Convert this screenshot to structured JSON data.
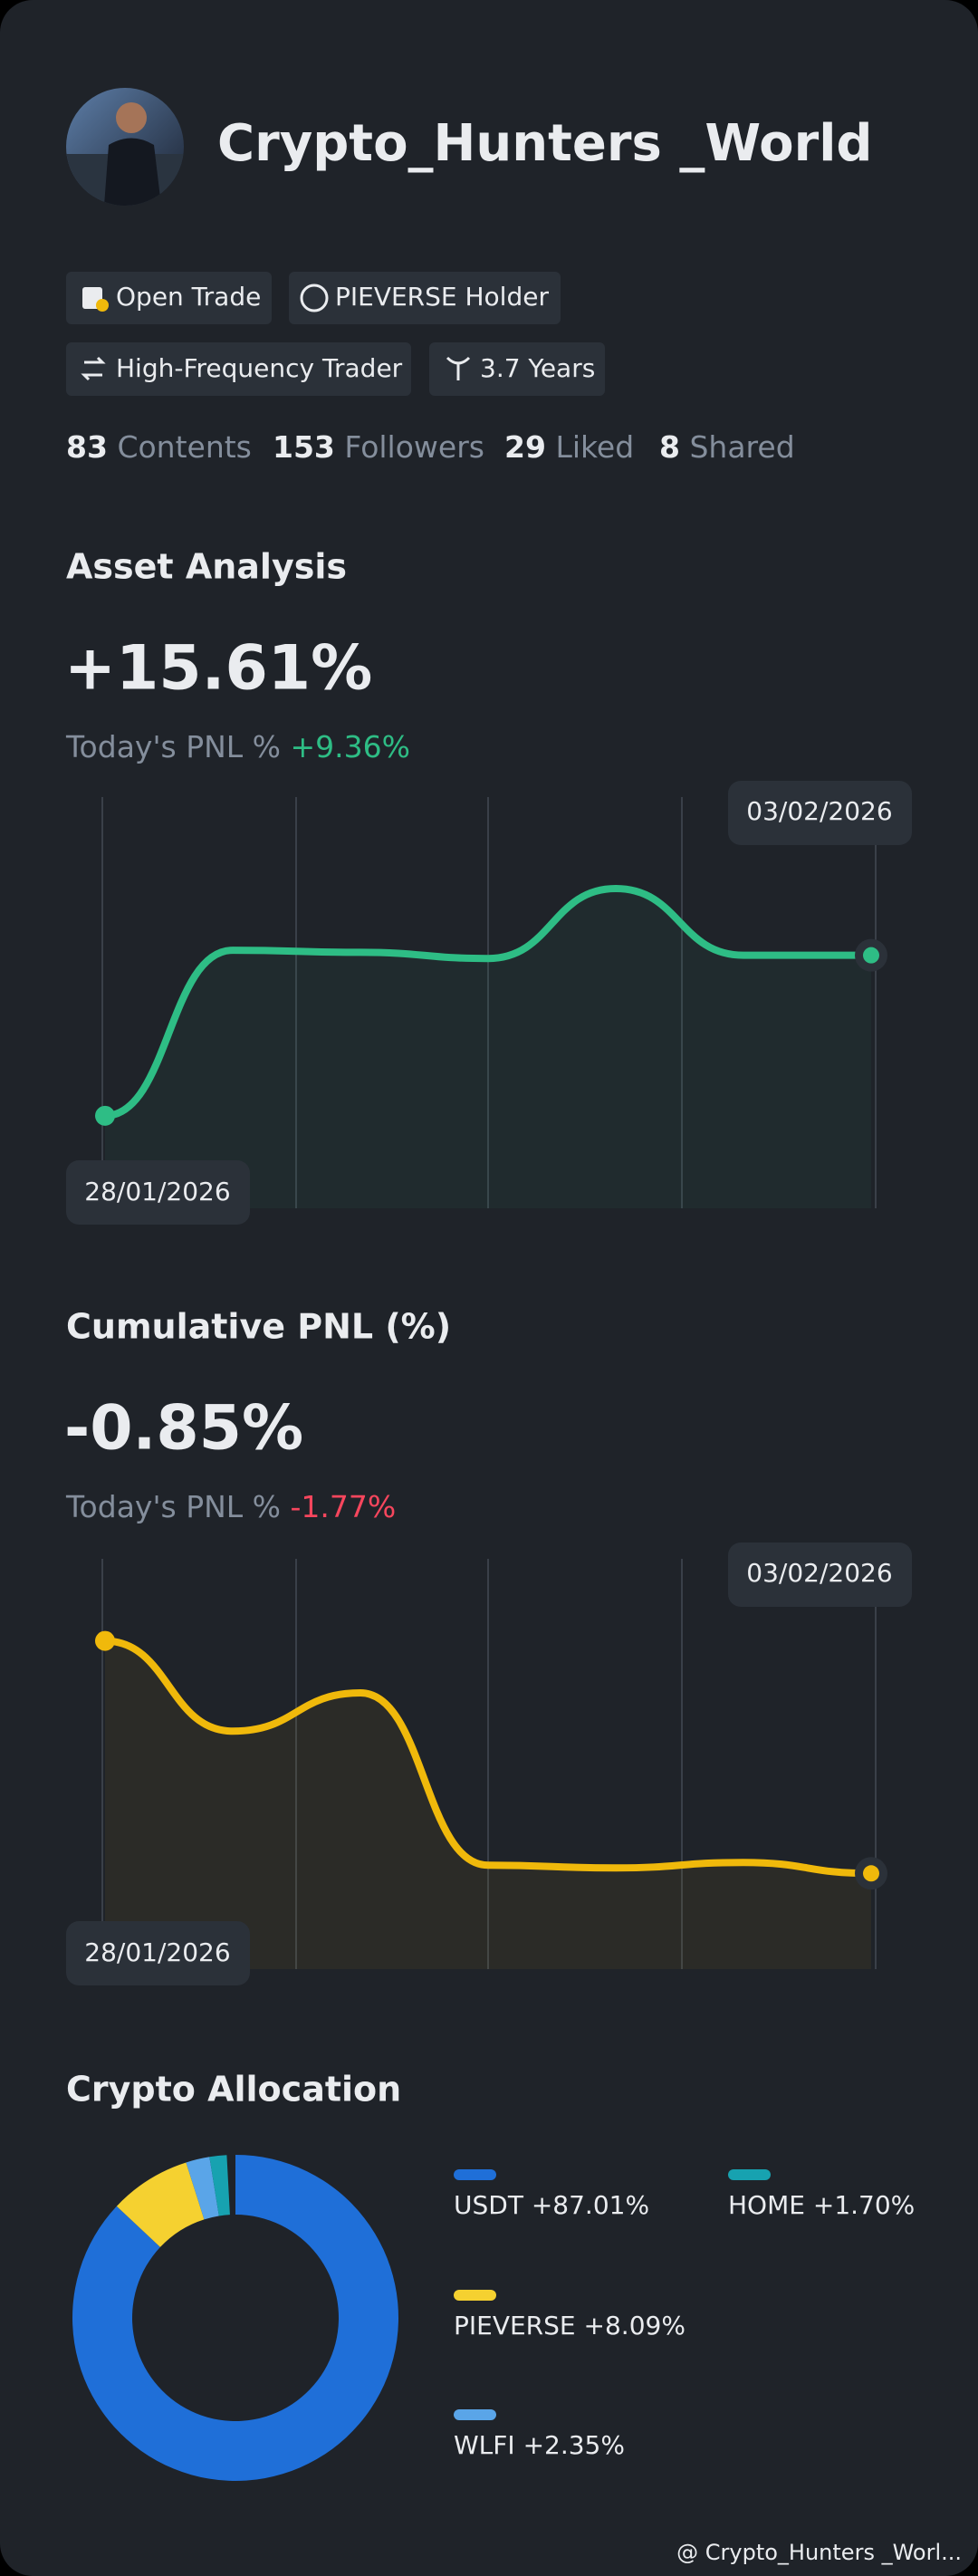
{
  "profile": {
    "name": "Crypto_Hunters _World",
    "badges": [
      "Open Trade",
      "PIEVERSE Holder",
      "High-Frequency Trader",
      "3.7 Years"
    ],
    "stats": [
      {
        "value": 83,
        "label": "Contents"
      },
      {
        "value": 153,
        "label": "Followers"
      },
      {
        "value": 29,
        "label": "Liked"
      },
      {
        "value": 8,
        "label": "Shared"
      }
    ]
  },
  "chart_data": [
    {
      "type": "line",
      "title": "Asset Analysis",
      "headline": "+15.61%",
      "pnl_label": "Today's PNL %",
      "pnl_value": "+9.36%",
      "accent": "#2ebd85",
      "categories": [
        "28/01/2026",
        null,
        null,
        null,
        null,
        null,
        "03/02/2026"
      ],
      "series": [
        {
          "name": "Asset Analysis",
          "color": "#2ebd85",
          "values": [
            0,
            16.1,
            15.9,
            15.3,
            22.1,
            15.61,
            15.61
          ]
        }
      ],
      "ylim": [
        -9,
        31
      ],
      "grid": true
    },
    {
      "type": "line",
      "title": "Cumulative PNL (%)",
      "headline": "-0.85%",
      "pnl_label": "Today's PNL %",
      "pnl_value": "-1.77%",
      "accent": "#f6465d",
      "categories": [
        "28/01/2026",
        null,
        null,
        null,
        null,
        null,
        "03/02/2026"
      ],
      "series": [
        {
          "name": "Cumulative PNL (%)",
          "color": "#f0b90b",
          "values": [
            0,
            -0.33,
            -0.19,
            -0.82,
            -0.83,
            -0.81,
            -0.85
          ]
        }
      ],
      "ylim": [
        -1.2,
        0.3
      ],
      "grid": true
    },
    {
      "type": "pie",
      "title": "Crypto Allocation",
      "categories": [
        "USDT",
        "PIEVERSE",
        "WLFI",
        "HOME"
      ],
      "values": [
        87.01,
        8.09,
        2.35,
        1.7
      ],
      "value_labels": [
        "+87.01%",
        "+8.09%",
        "+2.35%",
        "+1.70%"
      ],
      "colors": [
        "#1f6fd8",
        "#f5d130",
        "#5aa5e8",
        "#17a2b0"
      ]
    }
  ],
  "footer": "@ Crypto_Hunters _Worl..."
}
